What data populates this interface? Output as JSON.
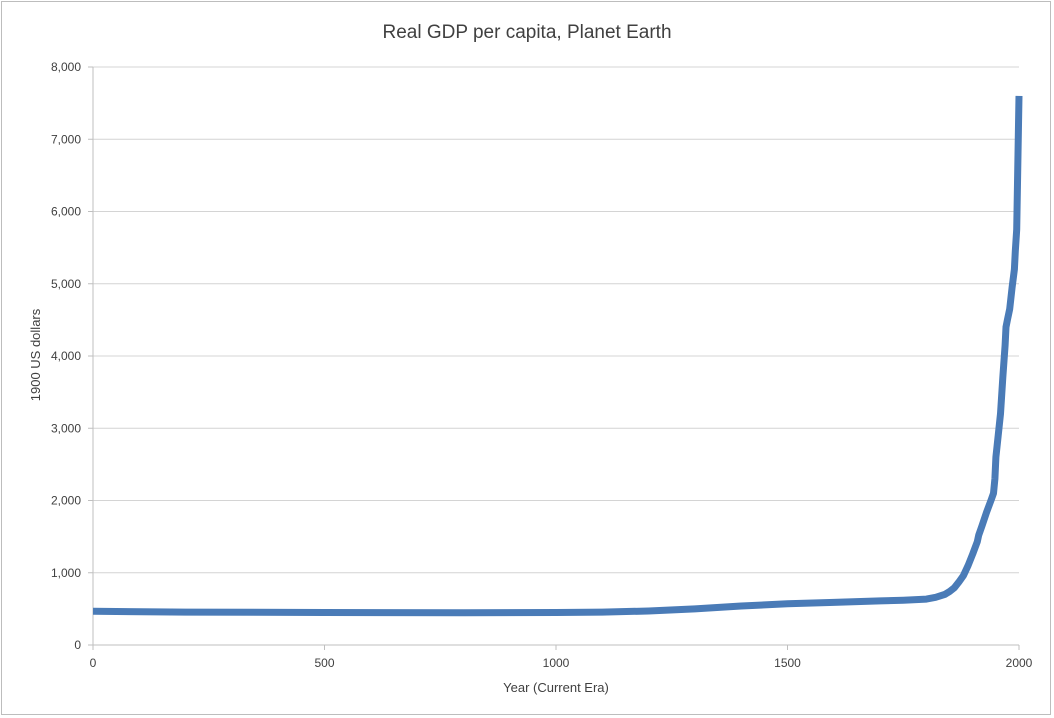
{
  "chart_data": {
    "type": "line",
    "title": "Real GDP per capita, Planet Earth",
    "xlabel": "Year (Current Era)",
    "ylabel": "1900 US dollars",
    "xlim": [
      0,
      2000
    ],
    "ylim": [
      0,
      8000
    ],
    "x_ticks": [
      0,
      500,
      1000,
      1500,
      2000
    ],
    "x_tick_labels": [
      "0",
      "500",
      "1000",
      "1500",
      "2000"
    ],
    "y_ticks": [
      0,
      1000,
      2000,
      3000,
      4000,
      5000,
      6000,
      7000,
      8000
    ],
    "y_tick_labels": [
      "0",
      "1,000",
      "2,000",
      "3,000",
      "4,000",
      "5,000",
      "6,000",
      "7,000",
      "8,000"
    ],
    "grid": "horizontal",
    "legend": "none",
    "series": [
      {
        "color": "#4a7bb7",
        "x": [
          0,
          200,
          500,
          800,
          1000,
          1100,
          1200,
          1300,
          1400,
          1500,
          1600,
          1700,
          1750,
          1800,
          1820,
          1840,
          1850,
          1860,
          1870,
          1880,
          1890,
          1900,
          1910,
          1913,
          1920,
          1930,
          1940,
          1945,
          1948,
          1950,
          1955,
          1960,
          1965,
          1970,
          1972,
          1975,
          1980,
          1985,
          1990,
          1992,
          1995,
          2000
        ],
        "y": [
          467,
          455,
          450,
          445,
          450,
          455,
          470,
          500,
          540,
          570,
          590,
          610,
          620,
          635,
          660,
          700,
          740,
          790,
          870,
          960,
          1100,
          1260,
          1430,
          1520,
          1650,
          1840,
          2010,
          2100,
          2300,
          2600,
          2900,
          3200,
          3700,
          4150,
          4400,
          4500,
          4650,
          4950,
          5200,
          5450,
          5750,
          7600
        ]
      }
    ]
  }
}
